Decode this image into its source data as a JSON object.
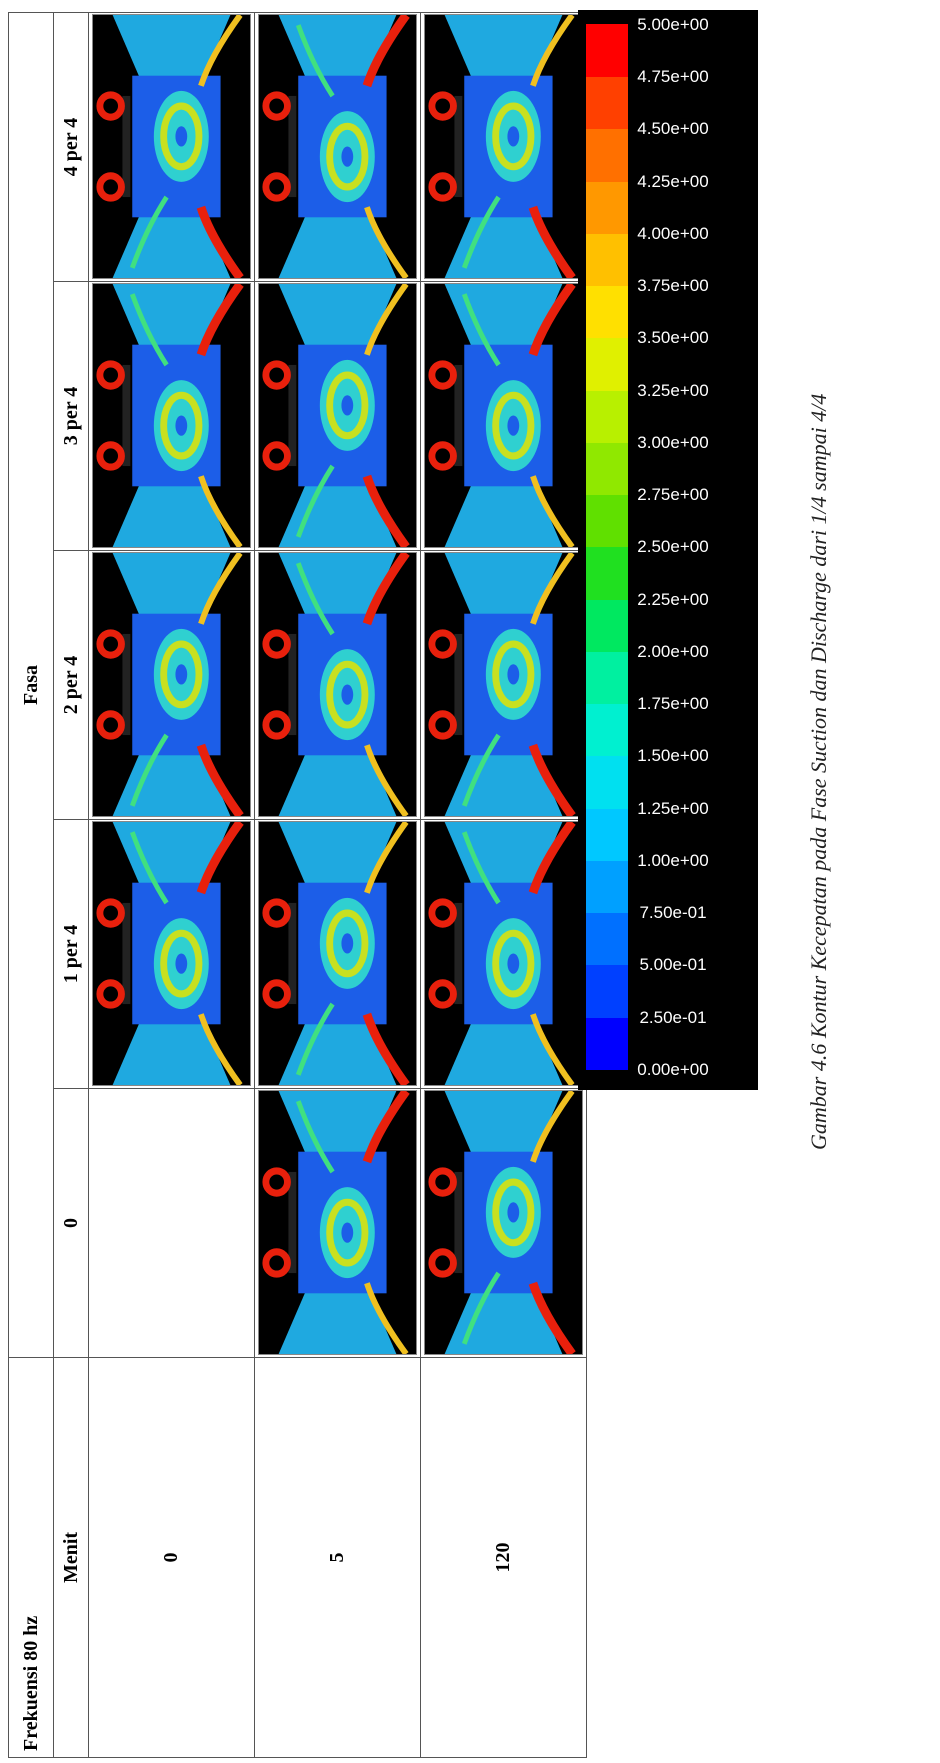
{
  "table": {
    "corner_title": "Frekuensi 80 hz",
    "row_header": "Menit",
    "column_group": "Fasa",
    "columns": [
      "0",
      "1 per 4",
      "2 per 4",
      "3 per 4",
      "4 per 4"
    ],
    "rows": [
      "0",
      "5",
      "120"
    ]
  },
  "colorbar": {
    "labels": [
      "5.00e+00",
      "4.75e+00",
      "4.50e+00",
      "4.25e+00",
      "4.00e+00",
      "3.75e+00",
      "3.50e+00",
      "3.25e+00",
      "3.00e+00",
      "2.75e+00",
      "2.50e+00",
      "2.25e+00",
      "2.00e+00",
      "1.75e+00",
      "1.50e+00",
      "1.25e+00",
      "1.00e+00",
      "7.50e-01",
      "5.00e-01",
      "2.50e-01",
      "0.00e+00"
    ]
  },
  "caption": "Gambar 4.6 Kontur Kecepatan pada Fase Suction dan Discharge dari 1/4 sampai 4/4"
}
